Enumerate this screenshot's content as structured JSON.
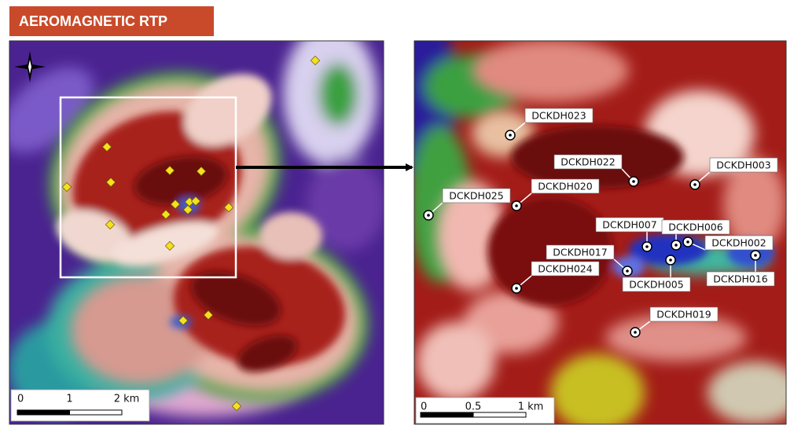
{
  "title": "AEROMAGNETIC RTP",
  "left_map": {
    "scale_bar": [
      "0",
      "1",
      "2 km"
    ]
  },
  "right_map": {
    "drill_holes": [
      {
        "label": "DCKDH023"
      },
      {
        "label": "DCKDH022"
      },
      {
        "label": "DCKDH003"
      },
      {
        "label": "DCKDH020"
      },
      {
        "label": "DCKDH025"
      },
      {
        "label": "DCKDH007"
      },
      {
        "label": "DCKDH006"
      },
      {
        "label": "DCKDH002"
      },
      {
        "label": "DCKDH017"
      },
      {
        "label": "DCKDH005"
      },
      {
        "label": "DCKDH016"
      },
      {
        "label": "DCKDH024"
      },
      {
        "label": "DCKDH019"
      }
    ],
    "scale_bar": [
      "0",
      "0.5",
      "1 km"
    ]
  }
}
